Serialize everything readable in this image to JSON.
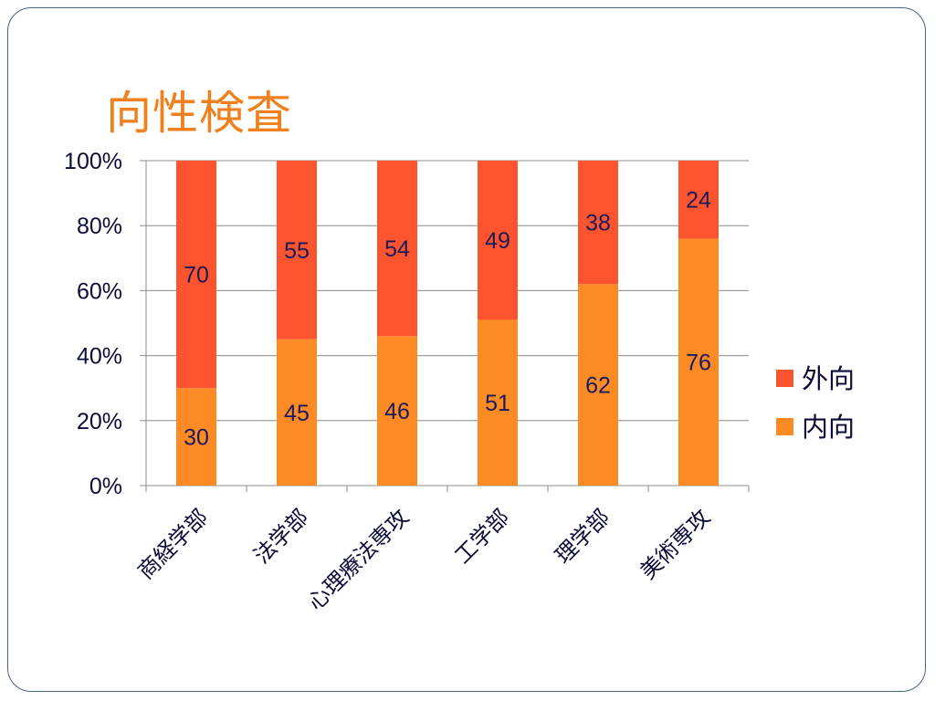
{
  "slide": {
    "title": "向性検査"
  },
  "colors": {
    "title": "#f07f1e",
    "outward": "#fd5430",
    "inward": "#fc8a25",
    "grid": "#8c8c8c",
    "text": "#0b0b3b"
  },
  "chart_data": {
    "type": "bar",
    "stacked": "percent",
    "categories": [
      "商経学部",
      "法学部",
      "心理療法専攻",
      "工学部",
      "理学部",
      "美術専攻"
    ],
    "series": [
      {
        "name": "内向",
        "color": "#fc8a25",
        "values": [
          30,
          45,
          46,
          51,
          62,
          76
        ]
      },
      {
        "name": "外向",
        "color": "#fd5430",
        "values": [
          70,
          55,
          54,
          49,
          38,
          24
        ]
      }
    ],
    "y_ticks": [
      "0%",
      "20%",
      "40%",
      "60%",
      "80%",
      "100%"
    ],
    "ylim": [
      0,
      100
    ],
    "grid": true,
    "legend": {
      "position": "right",
      "order": [
        "外向",
        "内向"
      ]
    },
    "data_labels": true
  }
}
